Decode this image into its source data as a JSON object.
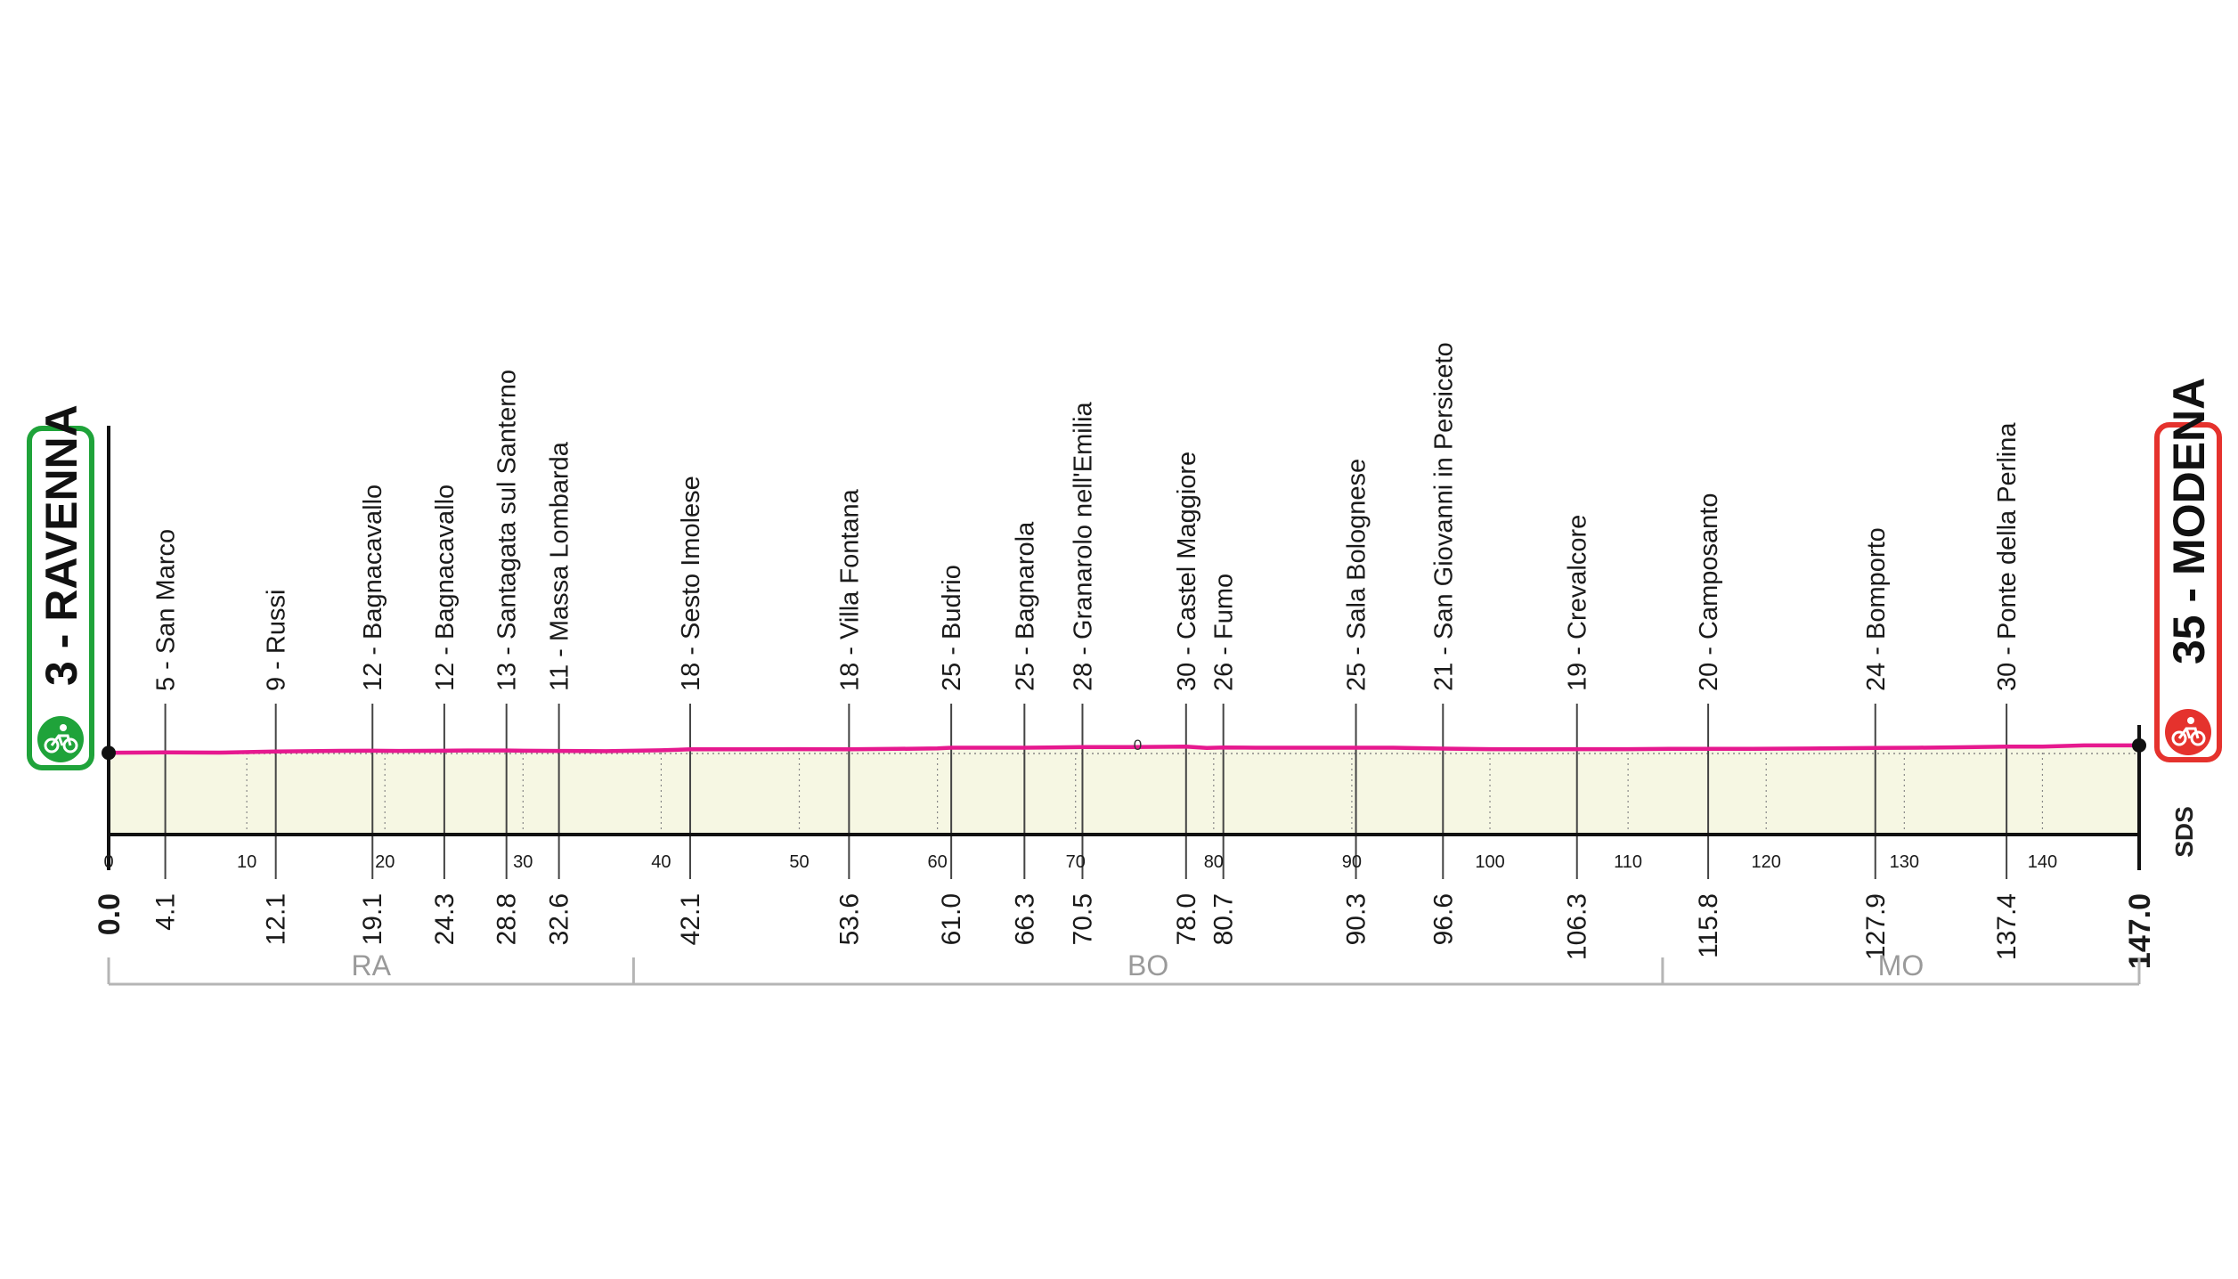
{
  "chart_data": {
    "type": "area",
    "xlabel": "",
    "ylabel": "",
    "xlim": [
      0,
      147
    ],
    "grid": false,
    "ticks": [
      0,
      10,
      20,
      30,
      40,
      50,
      60,
      70,
      80,
      90,
      100,
      110,
      120,
      130,
      140
    ],
    "baseline_label": "0",
    "start": {
      "km_label": "0.0",
      "name": "3 - RAVENNA",
      "elevation": 3,
      "color": "#1fa33a"
    },
    "finish": {
      "km_label": "147.0",
      "name": "35 - MODENA",
      "elevation": 35,
      "color": "#e5322d"
    },
    "waypoints": [
      {
        "km": 4.1,
        "km_label": "4.1",
        "elevation": 5,
        "name": "5 - San Marco"
      },
      {
        "km": 12.1,
        "km_label": "12.1",
        "elevation": 9,
        "name": "9 - Russi"
      },
      {
        "km": 19.1,
        "km_label": "19.1",
        "elevation": 12,
        "name": "12 - Bagnacavallo"
      },
      {
        "km": 24.3,
        "km_label": "24.3",
        "elevation": 12,
        "name": "12 - Bagnacavallo"
      },
      {
        "km": 28.8,
        "km_label": "28.8",
        "elevation": 13,
        "name": "13 - Santagata sul Santerno"
      },
      {
        "km": 32.6,
        "km_label": "32.6",
        "elevation": 11,
        "name": "11 - Massa Lombarda"
      },
      {
        "km": 42.1,
        "km_label": "42.1",
        "elevation": 18,
        "name": "18 - Sesto Imolese"
      },
      {
        "km": 53.6,
        "km_label": "53.6",
        "elevation": 18,
        "name": "18 - Villa Fontana"
      },
      {
        "km": 61.0,
        "km_label": "61.0",
        "elevation": 25,
        "name": "25 - Budrio"
      },
      {
        "km": 66.3,
        "km_label": "66.3",
        "elevation": 25,
        "name": "25 - Bagnarola"
      },
      {
        "km": 70.5,
        "km_label": "70.5",
        "elevation": 28,
        "name": "28 - Granarolo nell'Emilia"
      },
      {
        "km": 78.0,
        "km_label": "78.0",
        "elevation": 30,
        "name": "30 - Castel Maggiore"
      },
      {
        "km": 80.7,
        "km_label": "80.7",
        "elevation": 26,
        "name": "26 - Fumo"
      },
      {
        "km": 90.3,
        "km_label": "90.3",
        "elevation": 25,
        "name": "25 - Sala Bolognese"
      },
      {
        "km": 96.6,
        "km_label": "96.6",
        "elevation": 21,
        "name": "21 - San Giovanni in Persiceto"
      },
      {
        "km": 106.3,
        "km_label": "106.3",
        "elevation": 19,
        "name": "19 - Crevalcore"
      },
      {
        "km": 115.8,
        "km_label": "115.8",
        "elevation": 20,
        "name": "20 - Camposanto"
      },
      {
        "km": 127.9,
        "km_label": "127.9",
        "elevation": 24,
        "name": "24 - Bomporto"
      },
      {
        "km": 137.4,
        "km_label": "137.4",
        "elevation": 30,
        "name": "30 - Ponte della Perlina"
      }
    ],
    "profile": {
      "x": [
        0,
        4.1,
        8,
        12.1,
        16,
        19.1,
        21,
        24.3,
        26,
        28.8,
        30,
        32.6,
        36,
        40,
        42.1,
        46,
        50,
        53.6,
        57,
        60,
        61,
        63,
        66.3,
        68,
        70.5,
        74,
        78,
        79.5,
        80.7,
        83,
        86,
        90.3,
        93,
        96.6,
        100,
        103,
        106.3,
        110,
        113,
        115.8,
        119,
        124,
        127.9,
        131,
        134,
        137.4,
        140,
        143,
        147
      ],
      "y": [
        3,
        5,
        4,
        9,
        11,
        12,
        11,
        12,
        13,
        13,
        12,
        11,
        10,
        14,
        18,
        18,
        19,
        18,
        20,
        22,
        25,
        25,
        25,
        26,
        28,
        28,
        30,
        24,
        26,
        25,
        25,
        25,
        25,
        21,
        19,
        18,
        19,
        19,
        20,
        20,
        20,
        22,
        24,
        25,
        27,
        30,
        30,
        35,
        35
      ]
    },
    "provinces": [
      {
        "name": "RA",
        "from": 0,
        "to": 38
      },
      {
        "name": "BO",
        "from": 38,
        "to": 112.5
      },
      {
        "name": "MO",
        "from": 112.5,
        "to": 147
      }
    ],
    "colors": {
      "profile_line": "#e6198f",
      "area_fill": "#f6f7e3",
      "axis": "#111111",
      "waypoint_line": "#444444",
      "province_bracket": "#b5b5b5"
    }
  },
  "brand": {
    "name": "SDS"
  }
}
